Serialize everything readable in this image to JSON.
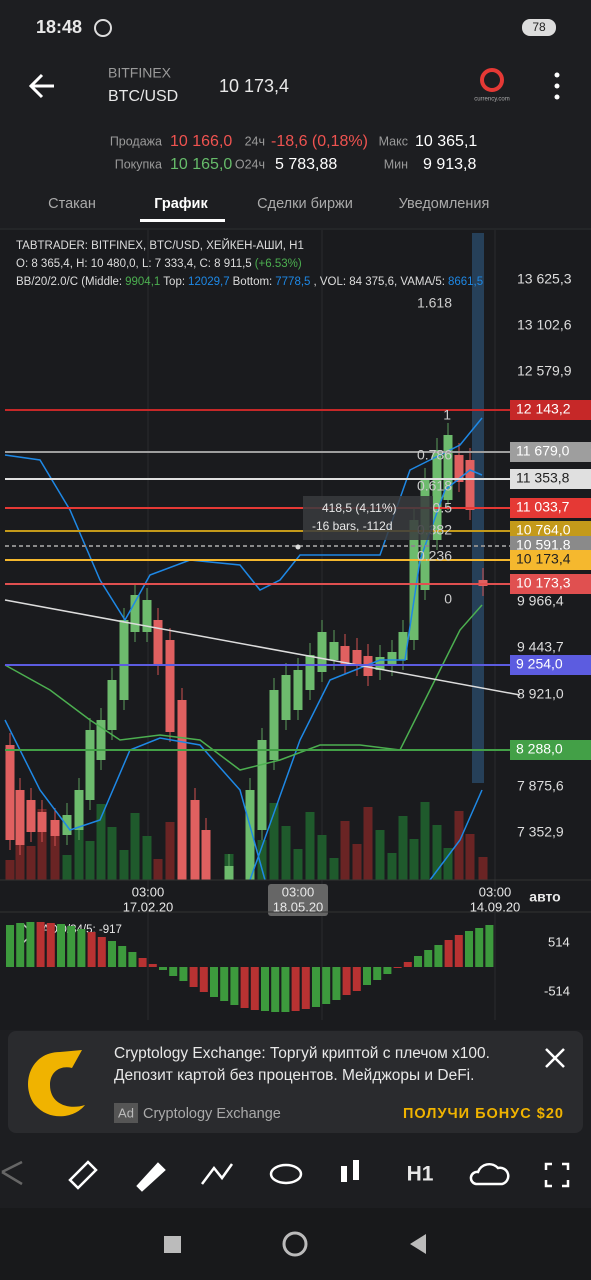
{
  "status": {
    "time": "18:48",
    "battery": "78"
  },
  "header": {
    "exchange": "BITFINEX",
    "pair": "BTC/USD",
    "price": "10 173,4",
    "logo_caption": "currency.com"
  },
  "stats": [
    {
      "label": "Продажа",
      "value": "10 166,0"
    },
    {
      "label": "Покупка",
      "value": "10 165,0"
    },
    {
      "label": "24ч",
      "value": "-18,6 (0,18%)"
    },
    {
      "label": "O24ч",
      "value": "5 783,88"
    },
    {
      "label": "Макс",
      "value": "10 365,1"
    },
    {
      "label": "Мин",
      "value": "9 913,8"
    }
  ],
  "tabs": [
    "Стакан",
    "График",
    "Сделки биржи",
    "Уведомления"
  ],
  "chart": {
    "info": [
      "TABTRADER: BITFINEX, BTC/USD, ХЕЙКЕН-АШИ, H1",
      "O: 8 365,4, H: 10 480,0, L: 7 333,4, C: 8 911,5",
      "(+6.53%)",
      "BB/20/2.0/C (Middle:",
      "9904,1",
      "Top:",
      "12029,7",
      "Bottom:",
      "7778,5",
      ", VOL: 84 375,6, VAMA/5:",
      "8661,5"
    ],
    "price_axis": [
      "13 625,3",
      "13 102,6",
      "12 579,9",
      "9 966,4",
      "9 443,7",
      "8 921,0",
      "7 875,6",
      "7 352,9"
    ],
    "levels": [
      {
        "label": "12 143,2",
        "color": "#c62828"
      },
      {
        "label": "11 679,0",
        "color": "#9e9e9e"
      },
      {
        "label": "11 353,8",
        "color": "#e0e0e0"
      },
      {
        "label": "11 033,7",
        "color": "#e53935"
      },
      {
        "label": "10 764,0",
        "color": "#c49a1a"
      },
      {
        "label": "10 591,8",
        "color": "#8a8a8a"
      },
      {
        "label": "10 173,4",
        "color": "#f5b82e"
      },
      {
        "label": "10 173,3",
        "color": "#e05050"
      },
      {
        "label": "9 254,0",
        "color": "#5c5ce0"
      },
      {
        "label": "8 288,0",
        "color": "#43a047"
      }
    ],
    "fib": [
      "1.618",
      "1",
      "0.786",
      "0.618",
      "0.5",
      "0.382",
      "0.236",
      "0"
    ],
    "measure": [
      "418,5 (4,11%)",
      "-16 bars, -112d"
    ],
    "time_axis": [
      {
        "time": "03:00",
        "date": "17.02.20"
      },
      {
        "time": "03:00",
        "date": "18.05.20"
      },
      {
        "time": "03:00",
        "date": "14.09.20"
      }
    ],
    "auto": "авто",
    "indicator": {
      "label": "ADO/34/5: -917",
      "axis": [
        "514",
        "-514"
      ]
    }
  },
  "ad": {
    "lines": [
      "Cryptology Exchange: Торгуй криптой с плечом x100.",
      "Депозит картой без процентов. Мейджоры и DeFi."
    ],
    "badge": "Ad",
    "advertiser": "Cryptology Exchange",
    "cta": "ПОЛУЧИ БОНУС $20"
  },
  "toolbar": {
    "timeframe": "H1"
  }
}
